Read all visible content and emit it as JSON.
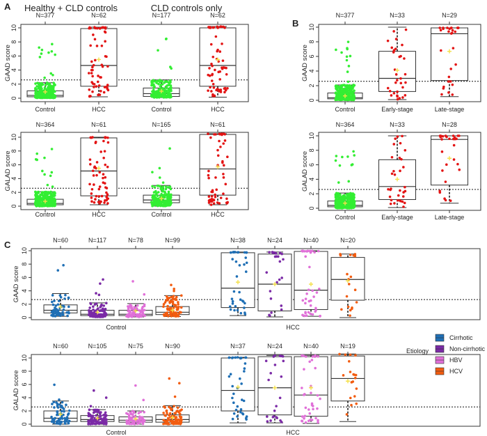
{
  "chart_data": [
    {
      "panel": "A",
      "title": "Healthy + CLD controls / CLD controls only",
      "type": "boxplot",
      "group_titles": [
        "Healthy + CLD controls",
        "CLD controls only"
      ],
      "ylabel": "GAAD score",
      "ylim": [
        0,
        10
      ],
      "yticks": [
        0,
        2,
        4,
        6,
        8,
        10
      ],
      "cutoff": 2.6,
      "boxes": [
        {
          "category": "Control",
          "n_label": "N=377",
          "color": "#33ee33",
          "low": 0.05,
          "q1": 0.2,
          "median": 0.4,
          "q3": 1.05,
          "high": 2.2,
          "mean": 0.9,
          "max": 8.5
        },
        {
          "category": "HCC",
          "n_label": "N=62",
          "color": "#e31414",
          "low": 0.2,
          "q1": 1.7,
          "median": 4.65,
          "q3": 9.9,
          "high": 10.1,
          "mean": 5.5,
          "max": 10.1
        },
        {
          "category": "Control",
          "n_label": "N=177",
          "color": "#33ee33",
          "low": 0.1,
          "q1": 0.25,
          "median": 0.65,
          "q3": 1.45,
          "high": 2.6,
          "mean": 1.0,
          "max": 8.6
        },
        {
          "category": "HCC",
          "n_label": "N=62",
          "color": "#e31414",
          "low": 0.15,
          "q1": 1.7,
          "median": 4.65,
          "q3": 10.0,
          "high": 10.2,
          "mean": 5.5,
          "max": 10.2
        }
      ]
    },
    {
      "panel": "",
      "type": "boxplot",
      "group_titles": [],
      "ylabel": "GALAD score",
      "ylim": [
        0,
        10
      ],
      "yticks": [
        0,
        2,
        4,
        6,
        8,
        10
      ],
      "cutoff": 2.6,
      "boxes": [
        {
          "category": "Control",
          "n_label": "N=364",
          "color": "#33ee33",
          "low": 0.0,
          "q1": 0.2,
          "median": 0.4,
          "q3": 1.0,
          "high": 2.1,
          "mean": 0.7,
          "max": 8.4
        },
        {
          "category": "HCC",
          "n_label": "N=61",
          "color": "#e31414",
          "low": 0.2,
          "q1": 1.5,
          "median": 5.1,
          "q3": 9.9,
          "high": 10.0,
          "mean": 5.5,
          "max": 10.0
        },
        {
          "category": "Control",
          "n_label": "N=165",
          "color": "#33ee33",
          "low": 0.0,
          "q1": 0.5,
          "median": 0.9,
          "q3": 1.6,
          "high": 3.0,
          "mean": 1.1,
          "max": 8.9
        },
        {
          "category": "HCC",
          "n_label": "N=61",
          "color": "#e31414",
          "low": 0.2,
          "q1": 1.6,
          "median": 5.4,
          "q3": 10.4,
          "high": 10.5,
          "mean": 5.7,
          "max": 10.5
        }
      ]
    },
    {
      "panel": "B",
      "type": "boxplot",
      "group_titles": [],
      "ylabel": "GAAD score",
      "ylim": [
        0,
        10
      ],
      "yticks": [
        0,
        2,
        4,
        6,
        8,
        10
      ],
      "cutoff": 2.6,
      "boxes": [
        {
          "category": "Control",
          "n_label": "N=377",
          "color": "#33ee33",
          "low": 0.05,
          "q1": 0.2,
          "median": 0.35,
          "q3": 1.0,
          "high": 2.1,
          "mean": 0.6,
          "max": 8.3
        },
        {
          "category": "Early-stage",
          "n_label": "N=33",
          "color": "#e31414",
          "low": 0.1,
          "q1": 1.2,
          "median": 3.0,
          "q3": 6.7,
          "high": 10.0,
          "mean": 4.1,
          "max": 10.0
        },
        {
          "category": "Late-stage",
          "n_label": "N=29",
          "color": "#e31414",
          "low": 0.5,
          "q1": 2.7,
          "median": 9.1,
          "q3": 9.9,
          "high": 9.9,
          "mean": 6.7,
          "max": 9.9
        }
      ]
    },
    {
      "panel": "",
      "type": "boxplot",
      "group_titles": [],
      "ylabel": "GALAD score",
      "ylim": [
        0,
        10
      ],
      "yticks": [
        0,
        2,
        4,
        6,
        8,
        10
      ],
      "cutoff": 2.6,
      "boxes": [
        {
          "category": "Control",
          "n_label": "N=364",
          "color": "#33ee33",
          "low": 0.0,
          "q1": 0.2,
          "median": 0.4,
          "q3": 1.0,
          "high": 2.1,
          "mean": 0.7,
          "max": 8.4
        },
        {
          "category": "Early-stage",
          "n_label": "N=33",
          "color": "#e31414",
          "low": 0.1,
          "q1": 1.2,
          "median": 3.0,
          "q3": 6.7,
          "high": 10.0,
          "mean": 4.0,
          "max": 10.0
        },
        {
          "category": "Late-stage",
          "n_label": "N=28",
          "color": "#e31414",
          "low": 0.7,
          "q1": 3.2,
          "median": 9.5,
          "q3": 10.0,
          "high": 10.0,
          "mean": 6.9,
          "max": 10.0
        }
      ]
    },
    {
      "panel": "C",
      "type": "boxplot",
      "group_titles": [],
      "x_groups": [
        "Control",
        "HCC"
      ],
      "ylabel": "GAAD score",
      "ylim": [
        0,
        10
      ],
      "yticks": [
        0,
        2,
        4,
        6,
        8,
        10
      ],
      "cutoff": 2.7,
      "boxes": [
        {
          "category": "Cirrhotic",
          "group": "Control",
          "n_label": "N=60",
          "color": "#1f6fb5",
          "low": 0.2,
          "q1": 0.7,
          "median": 1.1,
          "q3": 1.9,
          "high": 3.6,
          "mean": 1.6,
          "max": 8.2
        },
        {
          "category": "Non-cirrhotic",
          "group": "Control",
          "n_label": "N=117",
          "color": "#7b2aa6",
          "low": 0.1,
          "q1": 0.3,
          "median": 0.5,
          "q3": 1.1,
          "high": 2.2,
          "mean": 0.8,
          "max": 6.3
        },
        {
          "category": "HBV",
          "group": "Control",
          "n_label": "N=78",
          "color": "#e070d8",
          "low": 0.1,
          "q1": 0.3,
          "median": 0.5,
          "q3": 1.1,
          "high": 2.1,
          "mean": 1.0,
          "max": 6.2
        },
        {
          "category": "HCV",
          "group": "Control",
          "n_label": "N=99",
          "color": "#f25c10",
          "low": 0.15,
          "q1": 0.45,
          "median": 0.8,
          "q3": 1.65,
          "high": 3.3,
          "mean": 1.1,
          "max": 8.1
        },
        {
          "category": "Cirrhotic",
          "group": "HCC",
          "n_label": "N=38",
          "color": "#1f6fb5",
          "low": 0.3,
          "q1": 1.5,
          "median": 4.4,
          "q3": 9.7,
          "high": 9.8,
          "mean": 5.3,
          "max": 9.8
        },
        {
          "category": "Non-cirrhotic",
          "group": "HCC",
          "n_label": "N=24",
          "color": "#7b2aa6",
          "low": 0.1,
          "q1": 1.0,
          "median": 5.0,
          "q3": 9.5,
          "high": 9.8,
          "mean": 5.0,
          "max": 9.8
        },
        {
          "category": "HBV",
          "group": "HCC",
          "n_label": "N=40",
          "color": "#e070d8",
          "low": 0.2,
          "q1": 1.2,
          "median": 4.1,
          "q3": 9.9,
          "high": 10.0,
          "mean": 5.0,
          "max": 10.0
        },
        {
          "category": "HCV",
          "group": "HCC",
          "n_label": "N=20",
          "color": "#f25c10",
          "low": 0.0,
          "q1": 2.6,
          "median": 5.7,
          "q3": 9.0,
          "high": 9.5,
          "mean": 5.5,
          "max": 9.5
        }
      ]
    },
    {
      "panel": "",
      "type": "boxplot",
      "group_titles": [],
      "x_groups": [
        "Control",
        "HCC"
      ],
      "ylabel": "GALAD score",
      "ylim": [
        0,
        10
      ],
      "yticks": [
        0,
        2,
        4,
        6,
        8,
        10
      ],
      "cutoff": 2.6,
      "boxes": [
        {
          "category": "Cirrhotic",
          "group": "Control",
          "n_label": "N=60",
          "color": "#1f6fb5",
          "low": 0.0,
          "q1": 0.4,
          "median": 0.9,
          "q3": 2.0,
          "high": 3.5,
          "mean": 1.5,
          "max": 8.3
        },
        {
          "category": "Non-cirrhotic",
          "group": "Control",
          "n_label": "N=105",
          "color": "#7b2aa6",
          "low": 0.0,
          "q1": 0.4,
          "median": 0.7,
          "q3": 1.3,
          "high": 2.2,
          "mean": 0.9,
          "max": 6.2
        },
        {
          "category": "HBV",
          "group": "Control",
          "n_label": "N=75",
          "color": "#e070d8",
          "low": 0.0,
          "q1": 0.3,
          "median": 0.6,
          "q3": 1.1,
          "high": 2.0,
          "mean": 0.8,
          "max": 5.9
        },
        {
          "category": "HCV",
          "group": "Control",
          "n_label": "N=90",
          "color": "#f25c10",
          "low": 0.0,
          "q1": 0.3,
          "median": 0.7,
          "q3": 1.4,
          "high": 2.8,
          "mean": 1.0,
          "max": 8.1
        },
        {
          "category": "Cirrhotic",
          "group": "HCC",
          "n_label": "N=37",
          "color": "#1f6fb5",
          "low": 0.2,
          "q1": 2.0,
          "median": 5.1,
          "q3": 10.0,
          "high": 10.1,
          "mean": 5.6,
          "max": 10.1
        },
        {
          "category": "Non-cirrhotic",
          "group": "HCC",
          "n_label": "N=24",
          "color": "#7b2aa6",
          "low": 0.2,
          "q1": 1.4,
          "median": 5.5,
          "q3": 10.2,
          "high": 10.4,
          "mean": 5.5,
          "max": 10.4
        },
        {
          "category": "HBV",
          "group": "HCC",
          "n_label": "N=40",
          "color": "#e070d8",
          "low": 0.1,
          "q1": 1.2,
          "median": 4.4,
          "q3": 10.2,
          "high": 10.4,
          "mean": 5.5,
          "max": 10.4
        },
        {
          "category": "HCV",
          "group": "HCC",
          "n_label": "N=19",
          "color": "#f25c10",
          "low": 0.4,
          "q1": 3.5,
          "median": 6.9,
          "q3": 10.3,
          "high": 10.6,
          "mean": 6.5,
          "max": 10.6
        }
      ]
    }
  ],
  "legend": {
    "title": "Etiology",
    "items": [
      {
        "label": "Cirrhotic",
        "color": "#1f6fb5"
      },
      {
        "label": "Non-cirrhotic",
        "color": "#7b2aa6"
      },
      {
        "label": "HBV",
        "color": "#e070d8"
      },
      {
        "label": "HCV",
        "color": "#f25c10"
      }
    ]
  },
  "mean_marker_color": "#f4e04a"
}
